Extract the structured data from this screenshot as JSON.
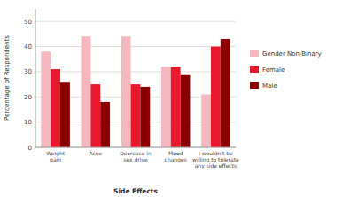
{
  "chart_data": {
    "type": "bar",
    "xlabel": "Side Effects",
    "ylabel": "Percentage of Respondents",
    "categories": [
      "Weight\ngain",
      "Acne",
      "Decrease in\nsex drive",
      "Mood\nchanges",
      "I wouldn't be\nwilling to tolerate\nany side effects"
    ],
    "series": [
      {
        "name": "Gender Non-Binary",
        "color": "#f5b8bf",
        "values": [
          38,
          44,
          44,
          32,
          21
        ]
      },
      {
        "name": "Female",
        "color": "#e8192c",
        "values": [
          31,
          25,
          25,
          32,
          40
        ]
      },
      {
        "name": "Male",
        "color": "#8b0000",
        "values": [
          26,
          18,
          24,
          29,
          43
        ]
      }
    ],
    "ylim": [
      0,
      55
    ],
    "yticks": [
      0,
      10,
      20,
      30,
      40,
      50
    ],
    "grid": true,
    "legend": "right"
  }
}
